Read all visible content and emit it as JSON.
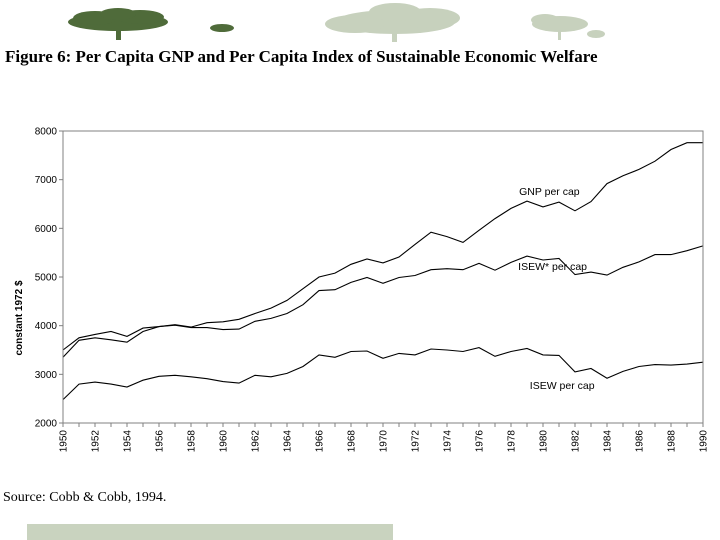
{
  "page": {
    "title": "Figure 6: Per Capita GNP and Per Capita Index of Sustainable Economic Welfare",
    "source": "Source: Cobb & Cobb, 1994."
  },
  "colors": {
    "line": "#000000",
    "tree_dark": "#4f6b3a",
    "tree_light": "#c7d1bd",
    "footer_bar": "#c9d3bf"
  },
  "chart_data": {
    "type": "line",
    "title": "Figure 6: Per Capita GNP and Per Capita Index of Sustainable Economic Welfare",
    "xlabel": "",
    "ylabel": "constant 1972 $",
    "xlim": [
      1950,
      1990
    ],
    "ylim": [
      2000,
      8000
    ],
    "yticks": [
      2000,
      3000,
      4000,
      5000,
      6000,
      7000,
      8000
    ],
    "x_tick_labels": [
      "1950",
      "1952",
      "1954",
      "1956",
      "1958",
      "1960",
      "1962",
      "1964",
      "1966",
      "1968",
      "1970",
      "1972",
      "1974",
      "1976",
      "1978",
      "1980",
      "1982",
      "1984",
      "1986",
      "1988",
      "1990"
    ],
    "grid": false,
    "x": [
      1950,
      1951,
      1952,
      1953,
      1954,
      1955,
      1956,
      1957,
      1958,
      1959,
      1960,
      1961,
      1962,
      1963,
      1964,
      1965,
      1966,
      1967,
      1968,
      1969,
      1970,
      1971,
      1972,
      1973,
      1974,
      1975,
      1976,
      1977,
      1978,
      1979,
      1980,
      1981,
      1982,
      1983,
      1984,
      1985,
      1986,
      1987,
      1988,
      1989,
      1990
    ],
    "series": [
      {
        "name": "GNP per cap",
        "label": "GNP per cap",
        "values": [
          3500,
          3750,
          3820,
          3880,
          3780,
          3950,
          3980,
          4020,
          3970,
          4060,
          4080,
          4130,
          4250,
          4360,
          4520,
          4760,
          5000,
          5080,
          5260,
          5370,
          5290,
          5410,
          5670,
          5920,
          5830,
          5710,
          5960,
          6200,
          6410,
          6560,
          6440,
          6540,
          6360,
          6550,
          6920,
          7080,
          7210,
          7380,
          7620,
          7760,
          7760
        ]
      },
      {
        "name": "ISEW* per cap",
        "label": "ISEW* per cap",
        "values": [
          3350,
          3700,
          3750,
          3710,
          3660,
          3880,
          3980,
          4010,
          3960,
          3960,
          3920,
          3930,
          4090,
          4150,
          4250,
          4430,
          4720,
          4740,
          4890,
          4990,
          4870,
          4990,
          5030,
          5150,
          5170,
          5150,
          5280,
          5140,
          5300,
          5430,
          5350,
          5380,
          5050,
          5100,
          5040,
          5200,
          5310,
          5460,
          5460,
          5540,
          5640
        ]
      },
      {
        "name": "ISEW per cap",
        "label": "ISEW per cap",
        "values": [
          2480,
          2800,
          2840,
          2800,
          2740,
          2880,
          2960,
          2980,
          2950,
          2910,
          2850,
          2820,
          2980,
          2950,
          3020,
          3160,
          3400,
          3350,
          3470,
          3480,
          3330,
          3430,
          3400,
          3520,
          3500,
          3470,
          3550,
          3370,
          3470,
          3530,
          3400,
          3390,
          3050,
          3120,
          2920,
          3060,
          3160,
          3200,
          3190,
          3210,
          3250
        ]
      }
    ]
  }
}
